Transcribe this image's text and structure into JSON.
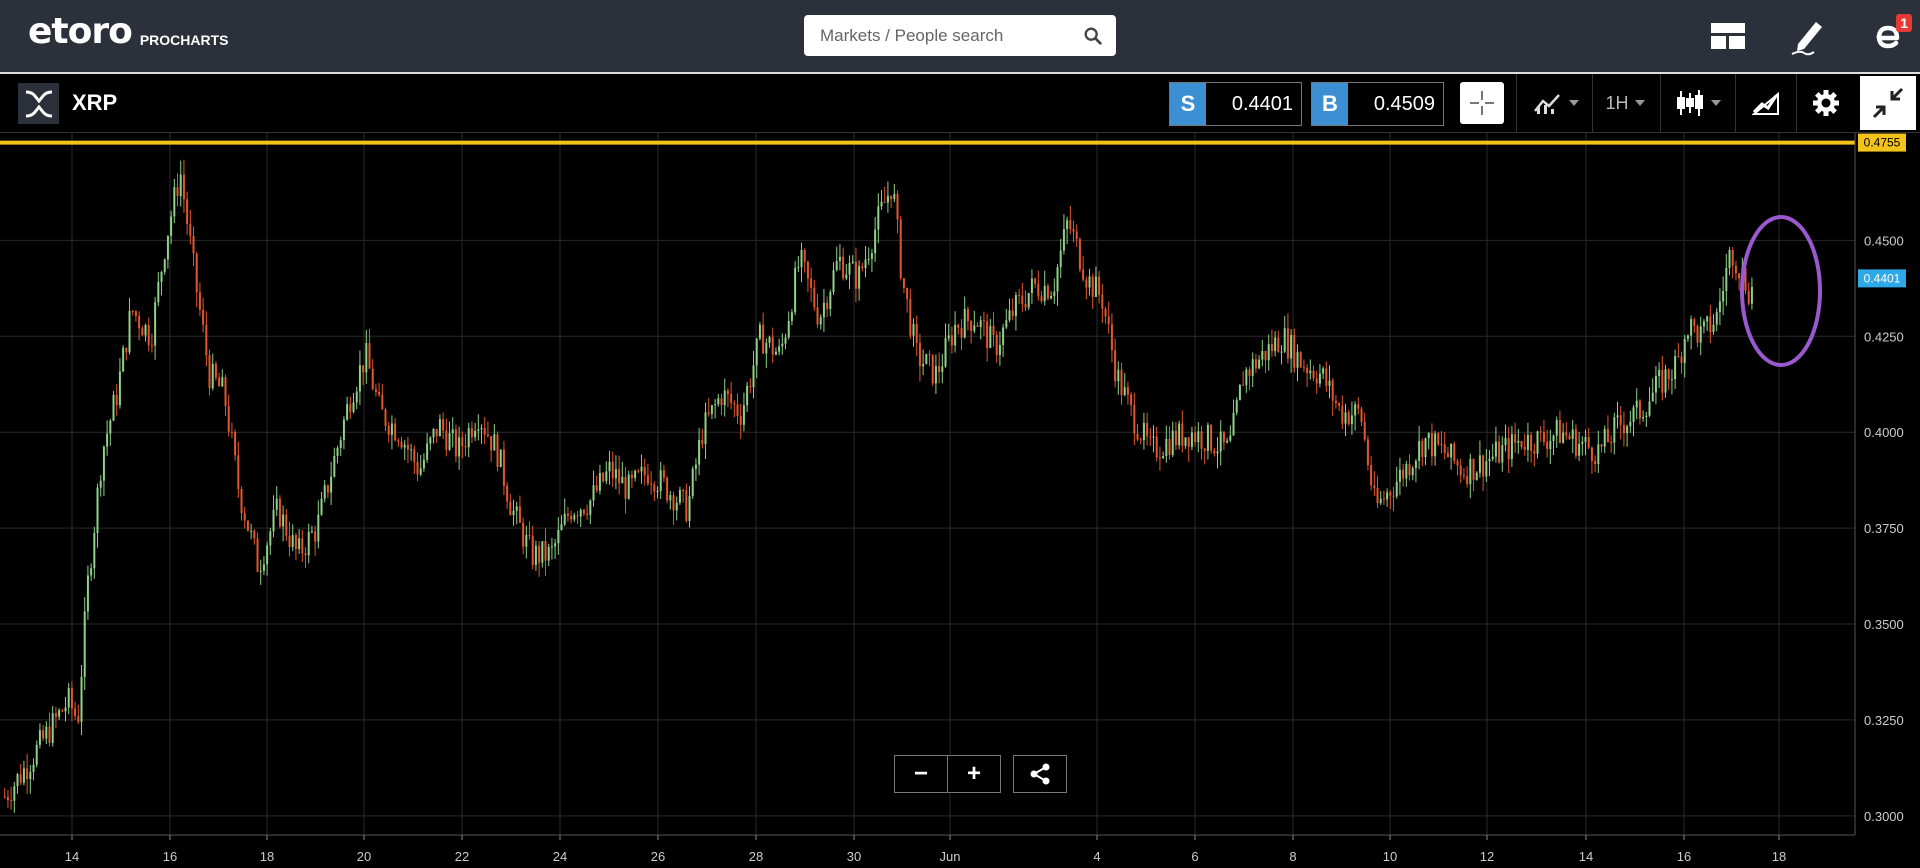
{
  "app": {
    "logo_text": "etoro",
    "logo_sub": "PROCHARTS",
    "search_placeholder": "Markets / People search",
    "notifications_count": "1"
  },
  "instrument": {
    "name": "XRP",
    "sell_tag": "S",
    "sell_price": "0.4401",
    "buy_tag": "B",
    "buy_price": "0.4509",
    "timeframe": "1H"
  },
  "colors": {
    "accent": "#3d8fd4",
    "level_line": "#f2c31b",
    "bull": "#8fd18a",
    "bear": "#e4572e",
    "highlight_ellipse": "#9b59d0",
    "current_price_label": "#2ea8e6"
  },
  "icons": {
    "search": "search-icon",
    "layout": "layout-icon",
    "edit": "pencil-icon",
    "profile": "etoro-e-icon",
    "crosshair": "crosshair-icon",
    "indicators": "indicators-icon",
    "chart_type": "candlestick-icon",
    "drawing": "drawing-icon",
    "settings": "gear-icon",
    "exit_fullscreen": "collapse-icon",
    "share": "share-icon"
  },
  "chart_data": {
    "type": "candlestick",
    "instrument": "XRP",
    "interval": "1H",
    "y_range": [
      0.295,
      0.478
    ],
    "y_ticks": [
      "0.4500",
      "0.4250",
      "0.4000",
      "0.3750",
      "0.3500",
      "0.3250",
      "0.3000"
    ],
    "x_tick_labels": [
      "14",
      "16",
      "18",
      "20",
      "22",
      "24",
      "26",
      "28",
      "30",
      "Jun",
      "4",
      "6",
      "8",
      "10",
      "12",
      "14",
      "16",
      "18"
    ],
    "horizontal_level": {
      "value": 0.4755,
      "label": "0.4755"
    },
    "current_price": {
      "value": 0.4401,
      "label": "0.4401"
    },
    "price_path": [
      [
        12.6,
        0.305
      ],
      [
        13.0,
        0.312
      ],
      [
        13.5,
        0.322
      ],
      [
        13.9,
        0.33
      ],
      [
        14.1,
        0.325
      ],
      [
        14.3,
        0.36
      ],
      [
        14.6,
        0.395
      ],
      [
        14.9,
        0.41
      ],
      [
        15.2,
        0.432
      ],
      [
        15.6,
        0.425
      ],
      [
        15.9,
        0.45
      ],
      [
        16.2,
        0.468
      ],
      [
        16.5,
        0.44
      ],
      [
        16.8,
        0.415
      ],
      [
        17.1,
        0.41
      ],
      [
        17.4,
        0.385
      ],
      [
        17.8,
        0.365
      ],
      [
        18.2,
        0.38
      ],
      [
        18.6,
        0.368
      ],
      [
        19.0,
        0.375
      ],
      [
        19.4,
        0.395
      ],
      [
        19.7,
        0.41
      ],
      [
        20.0,
        0.42
      ],
      [
        20.3,
        0.405
      ],
      [
        20.7,
        0.4
      ],
      [
        21.1,
        0.39
      ],
      [
        21.5,
        0.402
      ],
      [
        21.9,
        0.395
      ],
      [
        22.3,
        0.405
      ],
      [
        22.7,
        0.395
      ],
      [
        23.0,
        0.38
      ],
      [
        23.4,
        0.368
      ],
      [
        23.8,
        0.368
      ],
      [
        24.2,
        0.38
      ],
      [
        24.6,
        0.382
      ],
      [
        25.0,
        0.39
      ],
      [
        25.4,
        0.385
      ],
      [
        25.8,
        0.39
      ],
      [
        26.2,
        0.385
      ],
      [
        26.6,
        0.38
      ],
      [
        26.9,
        0.4
      ],
      [
        27.3,
        0.41
      ],
      [
        27.7,
        0.405
      ],
      [
        28.1,
        0.425
      ],
      [
        28.5,
        0.42
      ],
      [
        28.9,
        0.445
      ],
      [
        29.3,
        0.43
      ],
      [
        29.7,
        0.445
      ],
      [
        30.1,
        0.44
      ],
      [
        30.5,
        0.455
      ],
      [
        30.8,
        0.465
      ],
      [
        31.0,
        0.44
      ],
      [
        31.3,
        0.42
      ],
      [
        31.7,
        0.415
      ],
      [
        32.1,
        0.428
      ],
      [
        32.5,
        0.43
      ],
      [
        32.9,
        0.422
      ],
      [
        33.3,
        0.432
      ],
      [
        33.7,
        0.438
      ],
      [
        34.1,
        0.438
      ],
      [
        34.4,
        0.455
      ],
      [
        34.8,
        0.44
      ],
      [
        35.1,
        0.435
      ],
      [
        35.4,
        0.415
      ],
      [
        35.7,
        0.405
      ],
      [
        36.1,
        0.395
      ],
      [
        36.5,
        0.398
      ],
      [
        36.9,
        0.4
      ],
      [
        37.3,
        0.398
      ],
      [
        37.7,
        0.395
      ],
      [
        38.0,
        0.415
      ],
      [
        38.4,
        0.42
      ],
      [
        38.8,
        0.425
      ],
      [
        39.2,
        0.418
      ],
      [
        39.6,
        0.415
      ],
      [
        40.0,
        0.405
      ],
      [
        40.4,
        0.405
      ],
      [
        40.7,
        0.38
      ],
      [
        41.0,
        0.385
      ],
      [
        41.4,
        0.392
      ],
      [
        41.7,
        0.398
      ],
      [
        42.1,
        0.395
      ],
      [
        42.5,
        0.39
      ],
      [
        42.9,
        0.392
      ],
      [
        43.3,
        0.395
      ],
      [
        43.7,
        0.398
      ],
      [
        44.1,
        0.398
      ],
      [
        44.5,
        0.4
      ],
      [
        44.9,
        0.397
      ],
      [
        45.3,
        0.395
      ],
      [
        45.7,
        0.402
      ],
      [
        46.1,
        0.405
      ],
      [
        46.5,
        0.412
      ],
      [
        46.9,
        0.418
      ],
      [
        47.1,
        0.428
      ],
      [
        47.4,
        0.425
      ],
      [
        47.7,
        0.43
      ],
      [
        48.0,
        0.448
      ],
      [
        48.2,
        0.442
      ],
      [
        48.4,
        0.436
      ],
      [
        48.5,
        0.44
      ]
    ]
  }
}
